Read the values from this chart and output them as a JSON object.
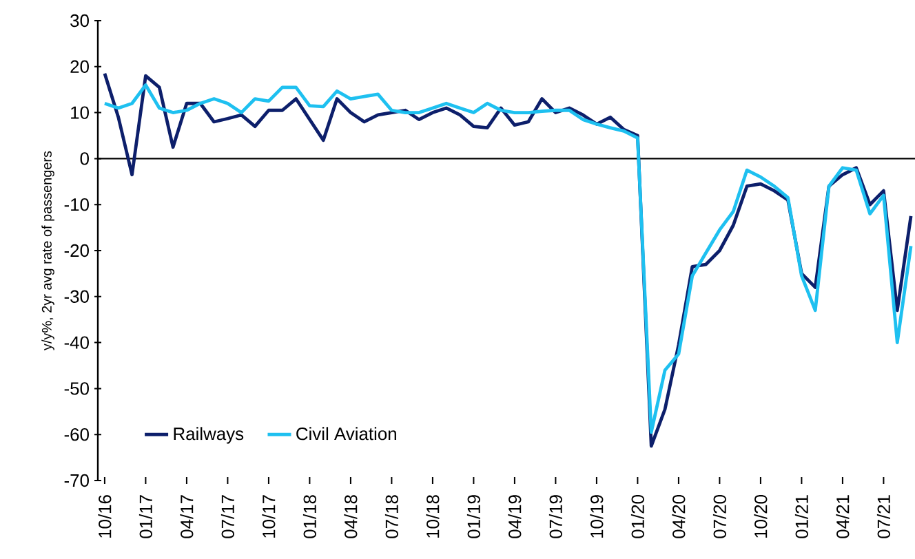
{
  "chart_data": {
    "type": "line",
    "ylabel": "y/y%, 2yr avg rate of passengers",
    "categories": [
      "10/16",
      null,
      null,
      "01/17",
      null,
      null,
      "04/17",
      null,
      null,
      "07/17",
      null,
      null,
      "10/17",
      null,
      null,
      "01/18",
      null,
      null,
      "04/18",
      null,
      null,
      "07/18",
      null,
      null,
      "10/18",
      null,
      null,
      "01/19",
      null,
      null,
      "04/19",
      null,
      null,
      "07/19",
      null,
      null,
      "10/19",
      null,
      null,
      "01/20",
      null,
      null,
      "04/20",
      null,
      null,
      "07/20",
      null,
      null,
      "10/20",
      null,
      null,
      "01/21",
      null,
      null,
      "04/21",
      null,
      null,
      "07/21",
      null,
      null
    ],
    "series": [
      {
        "name": "Railways",
        "color": "#0d1f6b",
        "values": [
          18.5,
          9,
          -3.5,
          18,
          15.5,
          2.5,
          12,
          12,
          8,
          8.7,
          9.5,
          7,
          10.5,
          10.5,
          13,
          8.5,
          4,
          13,
          10,
          8,
          9.5,
          10,
          10.5,
          8.5,
          10,
          11,
          9.5,
          7,
          6.7,
          11,
          7.3,
          8,
          13,
          10,
          11,
          9.5,
          7.5,
          9,
          6.3,
          5,
          -62.5,
          -54.5,
          -40.5,
          -23.5,
          -23,
          -20,
          -14.5,
          -6,
          -5.5,
          -7,
          -9,
          -25,
          -28,
          -6,
          -3.5,
          -2,
          -10,
          -7,
          -33,
          -12.5
        ]
      },
      {
        "name": "Civil Aviation",
        "color": "#1ec0f0",
        "values": [
          12,
          11,
          12,
          16,
          11,
          10,
          10.5,
          12,
          13,
          12,
          10,
          13,
          12.5,
          15.5,
          15.5,
          11.5,
          11.3,
          14.7,
          13,
          13.5,
          14,
          10.5,
          10,
          10,
          11,
          12,
          11,
          10,
          12,
          10.5,
          10,
          10,
          10.3,
          10.5,
          10.5,
          8.5,
          7.5,
          6.7,
          6,
          4.5,
          -59.5,
          -46,
          -42.5,
          -25.5,
          -20.5,
          -15.5,
          -11.5,
          -2.5,
          -4,
          -6,
          -8.5,
          -25.5,
          -33,
          -6,
          -2,
          -2.5,
          -12,
          -8,
          -40,
          -19
        ]
      }
    ],
    "ylim": [
      -70,
      30
    ],
    "yticks": [
      -70,
      -60,
      -50,
      -40,
      -30,
      -20,
      -10,
      0,
      10,
      20,
      30
    ],
    "legend": "bottom left",
    "marker": "none",
    "line_style": "solid"
  }
}
